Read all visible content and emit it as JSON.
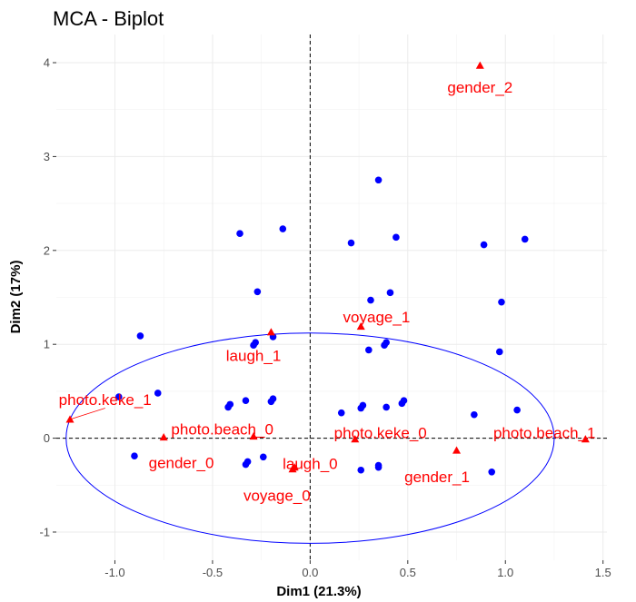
{
  "chart_data": {
    "type": "scatter",
    "title": "MCA - Biplot",
    "xlabel": "Dim1 (21.3%)",
    "ylabel": "Dim2 (17%)",
    "xlim": [
      -1.3,
      1.52
    ],
    "ylim": [
      -1.3,
      4.3
    ],
    "x_ticks": [
      -1.0,
      -0.5,
      0.0,
      0.5,
      1.0,
      1.5
    ],
    "x_tick_labels": [
      "-1.0",
      "-0.5",
      "0.0",
      "0.5",
      "1.0",
      "1.5"
    ],
    "y_ticks": [
      -1,
      0,
      1,
      2,
      3,
      4
    ],
    "y_tick_labels": [
      "-1",
      "0",
      "1",
      "2",
      "3",
      "4"
    ],
    "grid": true,
    "reference_lines": {
      "x": 0,
      "y": 0,
      "style": "dashed"
    },
    "series": [
      {
        "kind": "individuals",
        "marker": "circle",
        "color": "#0000ff",
        "points": [
          {
            "x": 0.35,
            "y": 2.75
          },
          {
            "x": 1.1,
            "y": 2.12
          },
          {
            "x": -0.36,
            "y": 2.18
          },
          {
            "x": -0.14,
            "y": 2.23
          },
          {
            "x": 0.21,
            "y": 2.08
          },
          {
            "x": 0.44,
            "y": 2.14
          },
          {
            "x": 0.89,
            "y": 2.06
          },
          {
            "x": -0.27,
            "y": 1.56
          },
          {
            "x": 0.31,
            "y": 1.47
          },
          {
            "x": 0.41,
            "y": 1.55
          },
          {
            "x": 0.98,
            "y": 1.45
          },
          {
            "x": -0.87,
            "y": 1.09
          },
          {
            "x": -0.19,
            "y": 1.08
          },
          {
            "x": -0.28,
            "y": 1.02
          },
          {
            "x": -0.29,
            "y": 0.99
          },
          {
            "x": 0.38,
            "y": 0.99
          },
          {
            "x": 0.39,
            "y": 1.02
          },
          {
            "x": 0.3,
            "y": 0.94
          },
          {
            "x": 0.97,
            "y": 0.92
          },
          {
            "x": -0.78,
            "y": 0.48
          },
          {
            "x": -0.98,
            "y": 0.44
          },
          {
            "x": -0.42,
            "y": 0.33
          },
          {
            "x": -0.41,
            "y": 0.36
          },
          {
            "x": -0.33,
            "y": 0.4
          },
          {
            "x": -0.2,
            "y": 0.39
          },
          {
            "x": -0.19,
            "y": 0.42
          },
          {
            "x": 0.16,
            "y": 0.27
          },
          {
            "x": 0.26,
            "y": 0.32
          },
          {
            "x": 0.27,
            "y": 0.35
          },
          {
            "x": 0.39,
            "y": 0.33
          },
          {
            "x": 0.47,
            "y": 0.37
          },
          {
            "x": 0.48,
            "y": 0.4
          },
          {
            "x": 0.84,
            "y": 0.25
          },
          {
            "x": 1.06,
            "y": 0.3
          },
          {
            "x": -0.9,
            "y": -0.19
          },
          {
            "x": -0.33,
            "y": -0.28
          },
          {
            "x": -0.32,
            "y": -0.25
          },
          {
            "x": -0.24,
            "y": -0.2
          },
          {
            "x": 0.26,
            "y": -0.34
          },
          {
            "x": 0.35,
            "y": -0.29
          },
          {
            "x": 0.35,
            "y": -0.31
          },
          {
            "x": 0.93,
            "y": -0.36
          }
        ]
      },
      {
        "kind": "categories",
        "marker": "triangle",
        "color": "#ff0000",
        "points": [
          {
            "label": "gender_2",
            "x": 0.87,
            "y": 3.97,
            "label_x": 0.87,
            "label_y": 3.74
          },
          {
            "label": "voyage_1",
            "x": 0.26,
            "y": 1.19,
            "label_x": 0.34,
            "label_y": 1.29
          },
          {
            "label": "laugh_1",
            "x": -0.2,
            "y": 1.13,
            "label_x": -0.29,
            "label_y": 0.88
          },
          {
            "label": "photo.keke_1",
            "x": -1.23,
            "y": 0.2,
            "label_x": -1.05,
            "label_y": 0.41
          },
          {
            "label": "photo.beach_0",
            "x": -0.29,
            "y": 0.02,
            "label_x": -0.45,
            "label_y": 0.1
          },
          {
            "label": "gender_0",
            "x": -0.75,
            "y": 0.01,
            "label_x": -0.66,
            "label_y": -0.26
          },
          {
            "label": "photo.keke_0",
            "x": 0.23,
            "y": -0.01,
            "label_x": 0.36,
            "label_y": 0.06
          },
          {
            "label": "photo.beach_1",
            "x": 1.41,
            "y": -0.01,
            "label_x": 1.2,
            "label_y": 0.06
          },
          {
            "label": "laugh_0",
            "x": -0.08,
            "y": -0.31,
            "label_x": 0.0,
            "label_y": -0.27
          },
          {
            "label": "gender_1",
            "x": 0.75,
            "y": -0.13,
            "label_x": 0.65,
            "label_y": -0.41
          },
          {
            "label": "voyage_0",
            "x": -0.09,
            "y": -0.33,
            "label_x": -0.17,
            "label_y": -0.61
          }
        ]
      }
    ],
    "ellipse": {
      "cx": 0.0,
      "cy": 0.0,
      "rx": 1.25,
      "ry": 1.12,
      "color": "#0000ff"
    }
  }
}
